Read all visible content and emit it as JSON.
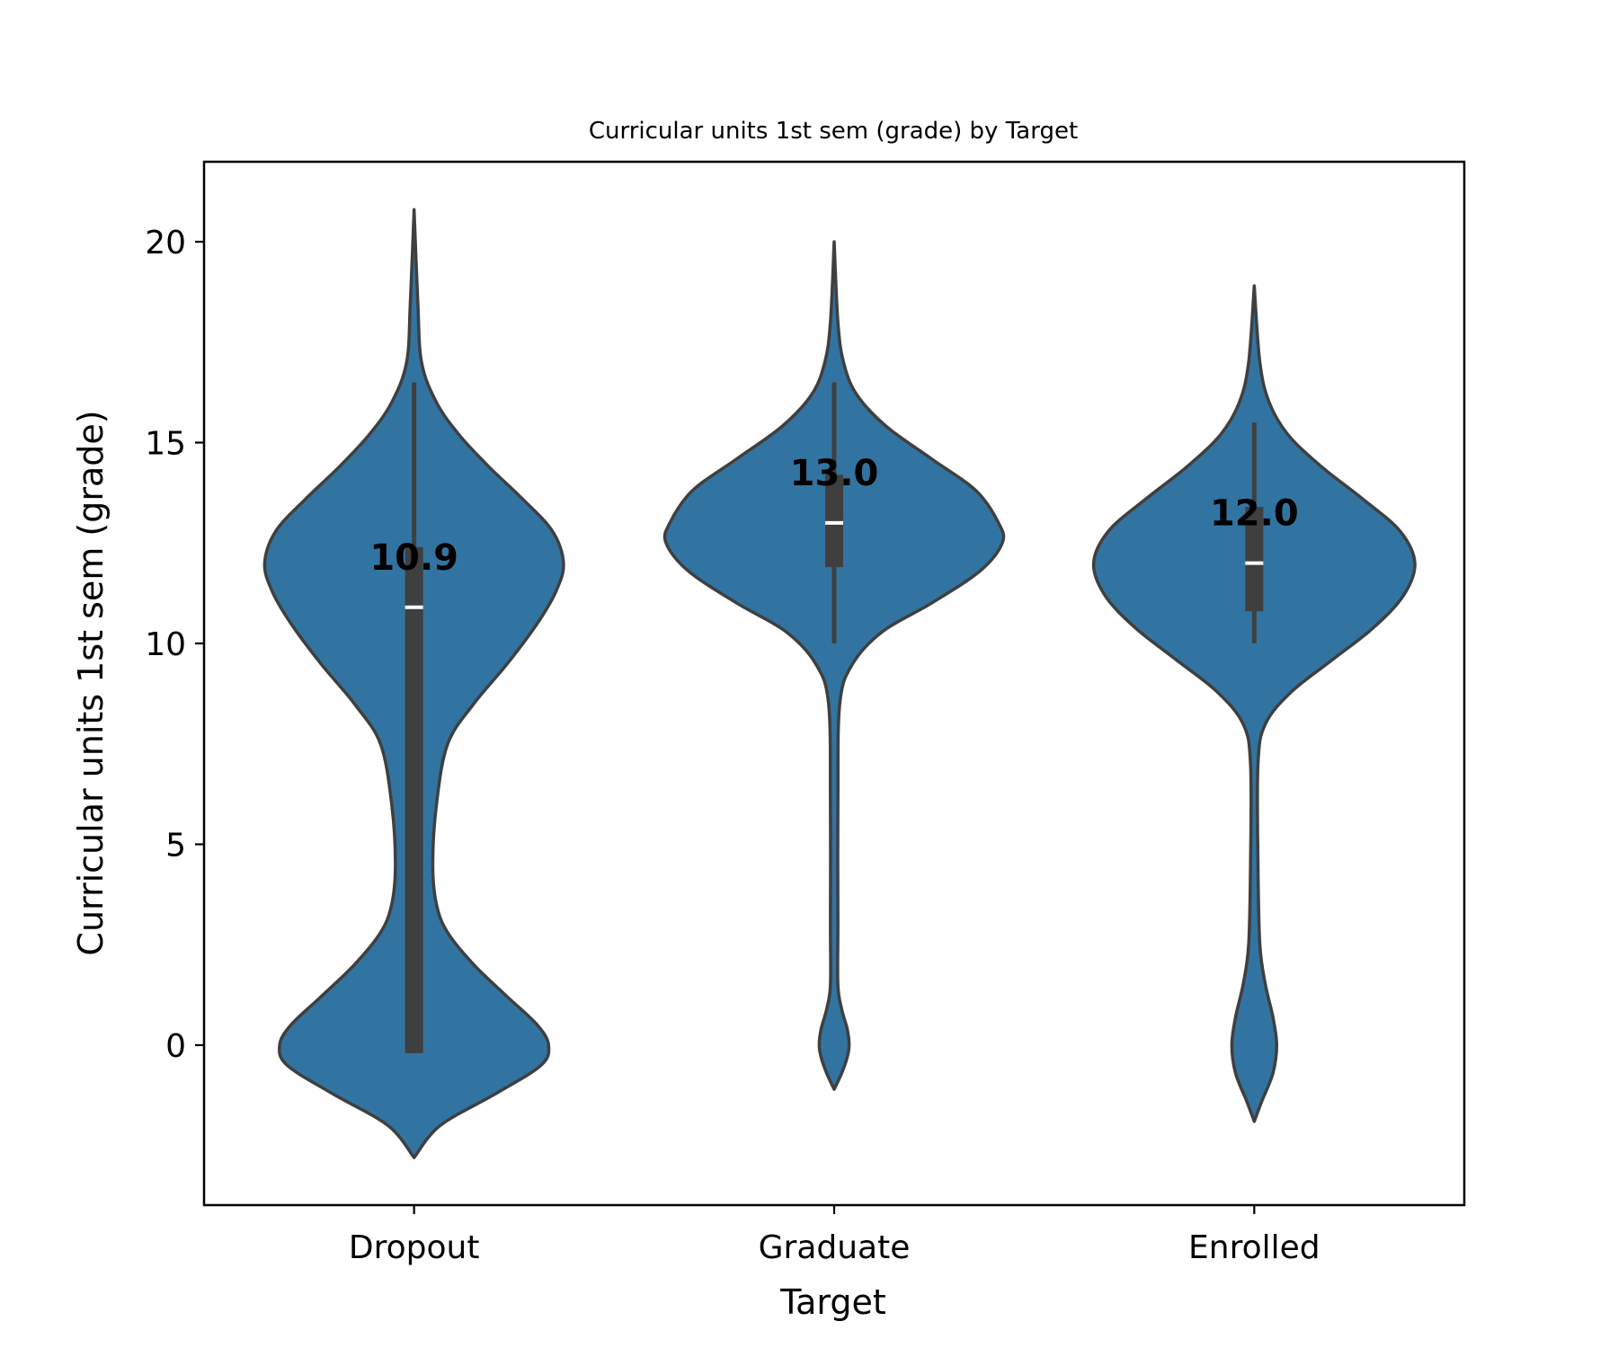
{
  "chart_data": {
    "type": "violin",
    "title": "Curricular units 1st sem (grade) by Target",
    "xlabel": "Target",
    "ylabel": "Curricular units 1st sem (grade)",
    "categories": [
      "Dropout",
      "Graduate",
      "Enrolled"
    ],
    "yticks": [
      "0",
      "5",
      "10",
      "15",
      "20"
    ],
    "ylim": [
      -4,
      22
    ],
    "violin_color": "#3274a1",
    "outline_color": "#3f3f3f",
    "grid": false,
    "legend": "none",
    "violins": [
      {
        "name": "Dropout",
        "median": 10.9,
        "median_label": "10.9",
        "q1": -0.2,
        "q3": 12.4,
        "whisker_low": -0.2,
        "whisker_high": 16.5,
        "range": [
          -2.8,
          20.8
        ],
        "density": [
          [
            -2.8,
            0.0
          ],
          [
            -2.0,
            0.07
          ],
          [
            -1.2,
            0.22
          ],
          [
            -0.5,
            0.34
          ],
          [
            0.0,
            0.36
          ],
          [
            0.5,
            0.33
          ],
          [
            1.2,
            0.25
          ],
          [
            2.0,
            0.16
          ],
          [
            2.8,
            0.09
          ],
          [
            3.5,
            0.06
          ],
          [
            4.5,
            0.05
          ],
          [
            6.0,
            0.06
          ],
          [
            7.5,
            0.09
          ],
          [
            8.5,
            0.16
          ],
          [
            9.5,
            0.25
          ],
          [
            10.5,
            0.33
          ],
          [
            11.3,
            0.38
          ],
          [
            12.0,
            0.4
          ],
          [
            12.8,
            0.37
          ],
          [
            13.6,
            0.29
          ],
          [
            14.4,
            0.2
          ],
          [
            15.2,
            0.12
          ],
          [
            16.0,
            0.06
          ],
          [
            17.0,
            0.02
          ],
          [
            18.5,
            0.01
          ],
          [
            20.8,
            0.0
          ]
        ]
      },
      {
        "name": "Graduate",
        "median": 13.0,
        "median_label": "13.0",
        "q1": 11.9,
        "q3": 14.2,
        "whisker_low": 10.0,
        "whisker_high": 16.5,
        "range": [
          -1.1,
          20.0
        ],
        "density": [
          [
            -1.1,
            0.0
          ],
          [
            -0.7,
            0.02
          ],
          [
            -0.3,
            0.035
          ],
          [
            0.0,
            0.04
          ],
          [
            0.4,
            0.035
          ],
          [
            0.9,
            0.02
          ],
          [
            1.5,
            0.01
          ],
          [
            3.0,
            0.01
          ],
          [
            6.0,
            0.01
          ],
          [
            8.5,
            0.015
          ],
          [
            9.5,
            0.05
          ],
          [
            10.3,
            0.13
          ],
          [
            11.0,
            0.26
          ],
          [
            11.8,
            0.39
          ],
          [
            12.5,
            0.45
          ],
          [
            13.0,
            0.44
          ],
          [
            13.8,
            0.38
          ],
          [
            14.6,
            0.26
          ],
          [
            15.4,
            0.14
          ],
          [
            16.2,
            0.06
          ],
          [
            17.0,
            0.025
          ],
          [
            18.0,
            0.01
          ],
          [
            20.0,
            0.0
          ]
        ]
      },
      {
        "name": "Enrolled",
        "median": 12.0,
        "median_label": "12.0",
        "q1": 10.8,
        "q3": 13.4,
        "whisker_low": 10.0,
        "whisker_high": 15.5,
        "range": [
          -1.9,
          18.9
        ],
        "density": [
          [
            -1.9,
            0.0
          ],
          [
            -1.4,
            0.02
          ],
          [
            -0.7,
            0.05
          ],
          [
            0.0,
            0.06
          ],
          [
            0.7,
            0.05
          ],
          [
            1.5,
            0.03
          ],
          [
            2.5,
            0.015
          ],
          [
            4.5,
            0.01
          ],
          [
            7.0,
            0.01
          ],
          [
            8.0,
            0.03
          ],
          [
            8.8,
            0.1
          ],
          [
            9.6,
            0.21
          ],
          [
            10.4,
            0.32
          ],
          [
            11.2,
            0.4
          ],
          [
            12.0,
            0.43
          ],
          [
            12.8,
            0.39
          ],
          [
            13.6,
            0.29
          ],
          [
            14.4,
            0.18
          ],
          [
            15.2,
            0.09
          ],
          [
            16.0,
            0.04
          ],
          [
            17.0,
            0.015
          ],
          [
            18.9,
            0.0
          ]
        ]
      }
    ]
  }
}
